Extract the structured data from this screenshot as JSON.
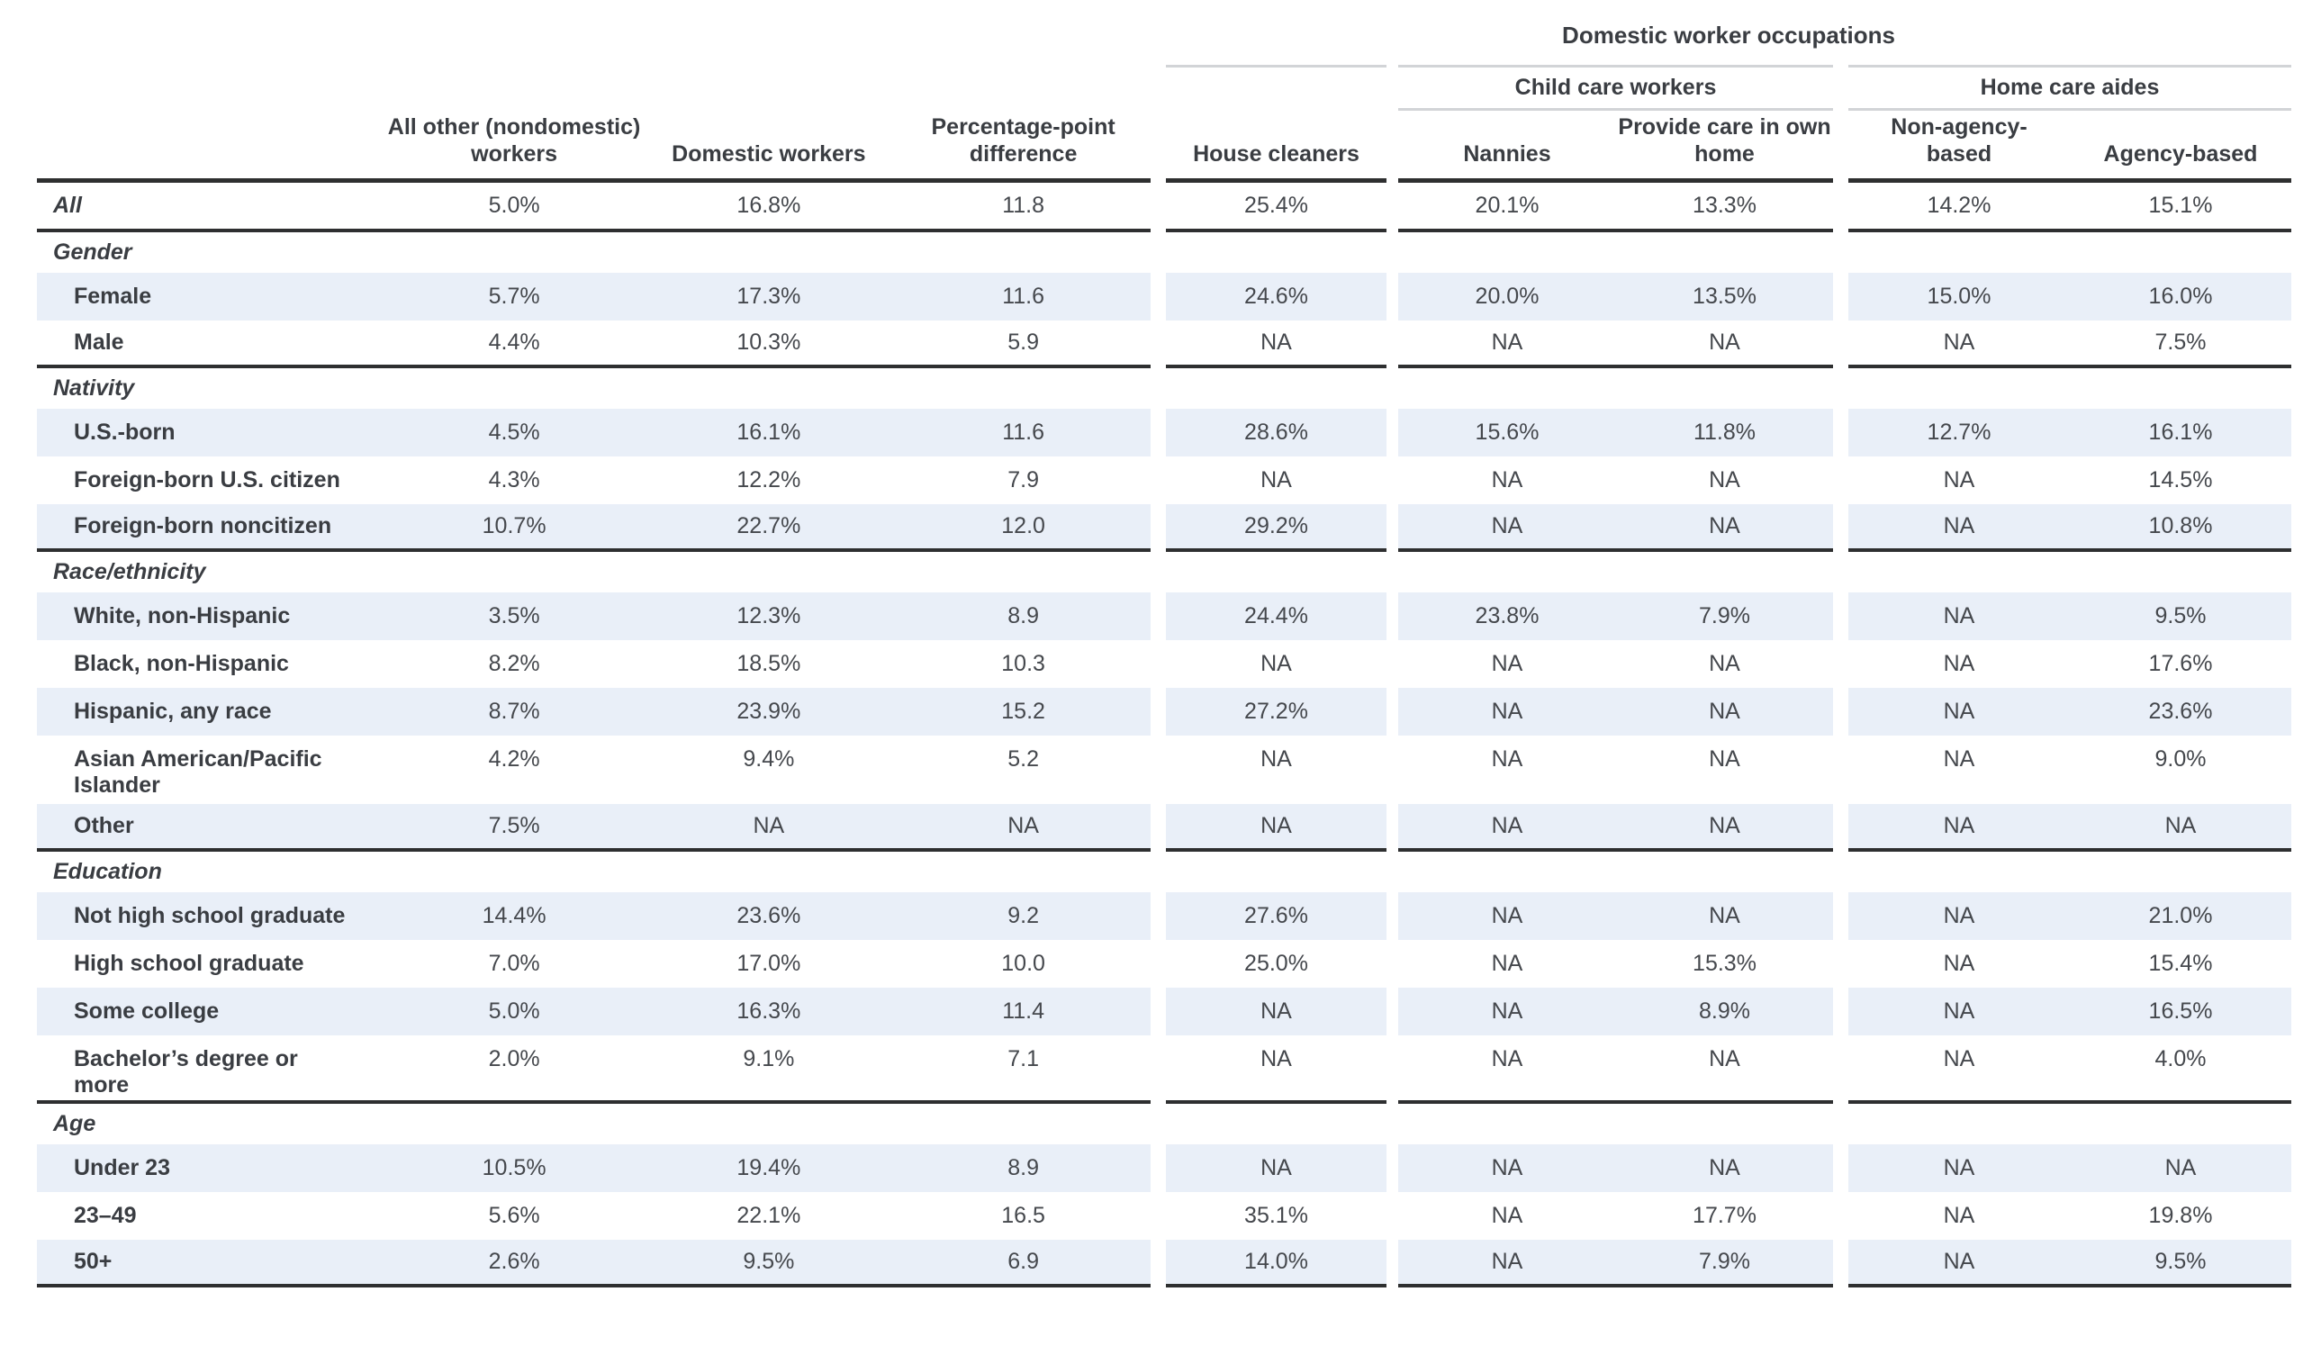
{
  "header": {
    "spanning_title": "Domestic worker occupations",
    "group_child_care": "Child care workers",
    "group_home_care": "Home care aides",
    "col_nondomestic": "All other (nondomestic) workers",
    "col_domestic": "Domestic workers",
    "col_ppdiff": "Percentage-point difference",
    "col_house_cleaners": "House cleaners",
    "col_nannies": "Nannies",
    "col_own_home": "Provide care in own home",
    "col_non_agency": "Non-agency-based",
    "col_agency": "Agency-based"
  },
  "chart_data": {
    "type": "table",
    "columns": [
      "All other (nondomestic) workers",
      "Domestic workers",
      "Percentage-point difference",
      "House cleaners",
      "Nannies",
      "Provide care in own home",
      "Non-agency-based",
      "Agency-based"
    ],
    "rows": [
      {
        "type": "all",
        "label": "All",
        "values": [
          "5.0%",
          "16.8%",
          "11.8",
          "25.4%",
          "20.1%",
          "13.3%",
          "14.2%",
          "15.1%"
        ],
        "striped": false,
        "end": true,
        "dbl": false
      },
      {
        "type": "section",
        "label": "Gender"
      },
      {
        "type": "data",
        "label": "Female",
        "values": [
          "5.7%",
          "17.3%",
          "11.6",
          "24.6%",
          "20.0%",
          "13.5%",
          "15.0%",
          "16.0%"
        ],
        "striped": true,
        "end": false,
        "dbl": false
      },
      {
        "type": "data",
        "label": "Male",
        "values": [
          "4.4%",
          "10.3%",
          "5.9",
          "NA",
          "NA",
          "NA",
          "NA",
          "7.5%"
        ],
        "striped": false,
        "end": true,
        "dbl": false
      },
      {
        "type": "section",
        "label": "Nativity"
      },
      {
        "type": "data",
        "label": "U.S.-born",
        "values": [
          "4.5%",
          "16.1%",
          "11.6",
          "28.6%",
          "15.6%",
          "11.8%",
          "12.7%",
          "16.1%"
        ],
        "striped": true,
        "end": false,
        "dbl": false
      },
      {
        "type": "data",
        "label": "Foreign-born U.S. citizen",
        "values": [
          "4.3%",
          "12.2%",
          "7.9",
          "NA",
          "NA",
          "NA",
          "NA",
          "14.5%"
        ],
        "striped": false,
        "end": false,
        "dbl": false
      },
      {
        "type": "data",
        "label": "Foreign-born noncitizen",
        "values": [
          "10.7%",
          "22.7%",
          "12.0",
          "29.2%",
          "NA",
          "NA",
          "NA",
          "10.8%"
        ],
        "striped": true,
        "end": true,
        "dbl": false
      },
      {
        "type": "section",
        "label": "Race/ethnicity"
      },
      {
        "type": "data",
        "label": "White, non-Hispanic",
        "values": [
          "3.5%",
          "12.3%",
          "8.9",
          "24.4%",
          "23.8%",
          "7.9%",
          "NA",
          "9.5%"
        ],
        "striped": true,
        "end": false,
        "dbl": false
      },
      {
        "type": "data",
        "label": "Black, non-Hispanic",
        "values": [
          "8.2%",
          "18.5%",
          "10.3",
          "NA",
          "NA",
          "NA",
          "NA",
          "17.6%"
        ],
        "striped": false,
        "end": false,
        "dbl": false
      },
      {
        "type": "data",
        "label": "Hispanic, any race",
        "values": [
          "8.7%",
          "23.9%",
          "15.2",
          "27.2%",
          "NA",
          "NA",
          "NA",
          "23.6%"
        ],
        "striped": true,
        "end": false,
        "dbl": false
      },
      {
        "type": "data",
        "label": "Asian American/Pacific Islander",
        "values": [
          "4.2%",
          "9.4%",
          "5.2",
          "NA",
          "NA",
          "NA",
          "NA",
          "9.0%"
        ],
        "striped": false,
        "end": false,
        "dbl": true
      },
      {
        "type": "data",
        "label": "Other",
        "values": [
          "7.5%",
          "NA",
          "NA",
          "NA",
          "NA",
          "NA",
          "NA",
          "NA"
        ],
        "striped": true,
        "end": true,
        "dbl": false
      },
      {
        "type": "section",
        "label": "Education"
      },
      {
        "type": "data",
        "label": "Not high school graduate",
        "values": [
          "14.4%",
          "23.6%",
          "9.2",
          "27.6%",
          "NA",
          "NA",
          "NA",
          "21.0%"
        ],
        "striped": true,
        "end": false,
        "dbl": false
      },
      {
        "type": "data",
        "label": "High school graduate",
        "values": [
          "7.0%",
          "17.0%",
          "10.0",
          "25.0%",
          "NA",
          "15.3%",
          "NA",
          "15.4%"
        ],
        "striped": false,
        "end": false,
        "dbl": false
      },
      {
        "type": "data",
        "label": "Some college",
        "values": [
          "5.0%",
          "16.3%",
          "11.4",
          "NA",
          "NA",
          "8.9%",
          "NA",
          "16.5%"
        ],
        "striped": true,
        "end": false,
        "dbl": false
      },
      {
        "type": "data",
        "label": "Bachelor’s degree or more",
        "values": [
          "2.0%",
          "9.1%",
          "7.1",
          "NA",
          "NA",
          "NA",
          "NA",
          "4.0%"
        ],
        "striped": false,
        "end": true,
        "dbl": true
      },
      {
        "type": "section",
        "label": "Age"
      },
      {
        "type": "data",
        "label": "Under 23",
        "values": [
          "10.5%",
          "19.4%",
          "8.9",
          "NA",
          "NA",
          "NA",
          "NA",
          "NA"
        ],
        "striped": true,
        "end": false,
        "dbl": false
      },
      {
        "type": "data",
        "label": "23–49",
        "values": [
          "5.6%",
          "22.1%",
          "16.5",
          "35.1%",
          "NA",
          "17.7%",
          "NA",
          "19.8%"
        ],
        "striped": false,
        "end": false,
        "dbl": false
      },
      {
        "type": "data",
        "label": "50+",
        "values": [
          "2.6%",
          "9.5%",
          "6.9",
          "14.0%",
          "NA",
          "7.9%",
          "NA",
          "9.5%"
        ],
        "striped": true,
        "end": true,
        "dbl": false
      }
    ]
  }
}
